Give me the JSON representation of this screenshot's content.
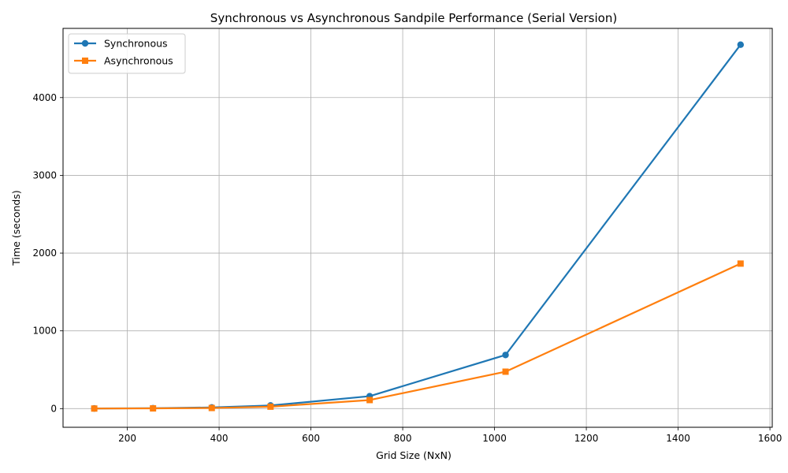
{
  "chart_data": {
    "type": "line",
    "title": "Synchronous vs Asynchronous Sandpile Performance (Serial Version)",
    "xlabel": "Grid Size (NxN)",
    "ylabel": "Time (seconds)",
    "xlim": [
      60,
      1605
    ],
    "ylim": [
      -240,
      4890
    ],
    "xticks": [
      200,
      400,
      600,
      800,
      1000,
      1200,
      1400,
      1600
    ],
    "yticks": [
      0,
      1000,
      2000,
      3000,
      4000
    ],
    "grid": true,
    "legend_position": "top-left",
    "series": [
      {
        "name": "Synchronous",
        "color": "#1f77b4",
        "marker": "circle",
        "x": [
          128,
          256,
          384,
          512,
          728,
          1024,
          1536
        ],
        "y": [
          2,
          5,
          15,
          40,
          160,
          690,
          4680
        ]
      },
      {
        "name": "Asynchronous",
        "color": "#ff7f0e",
        "marker": "square",
        "x": [
          128,
          256,
          384,
          512,
          728,
          1024,
          1536
        ],
        "y": [
          1,
          3,
          8,
          25,
          110,
          475,
          1865
        ]
      }
    ]
  }
}
